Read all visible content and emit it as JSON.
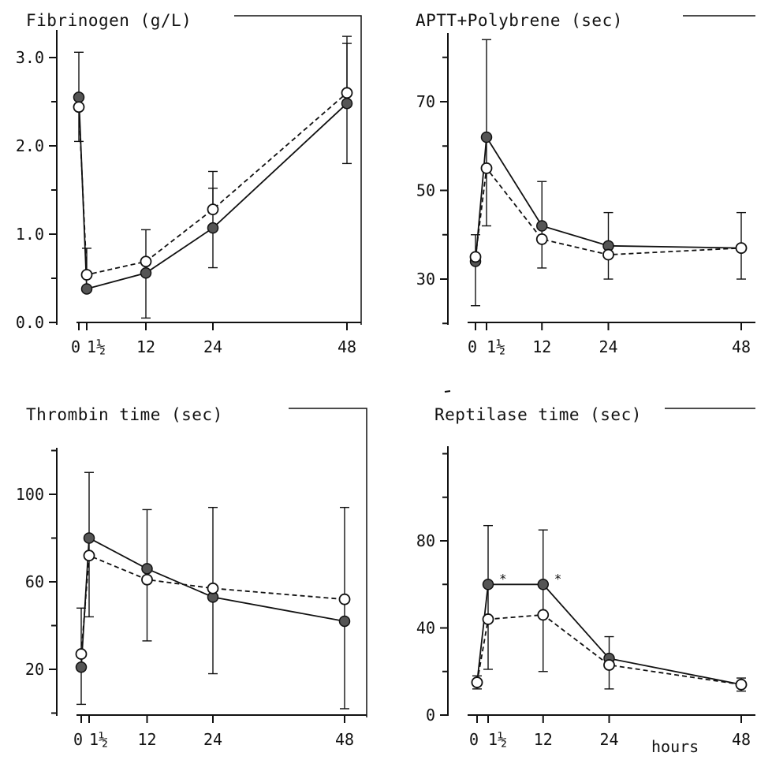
{
  "chart_data": [
    {
      "type": "line",
      "title": "Fibrinogen (g/L)",
      "x": [
        0,
        1.5,
        12,
        24,
        48
      ],
      "xticks": [
        "0",
        "1½",
        "12",
        "24",
        "48"
      ],
      "yticks": [
        "0.0",
        "1.0",
        "2.0",
        "3.0"
      ],
      "ylim": [
        0,
        3.2
      ],
      "series": [
        {
          "style": "solid",
          "marker": "filled",
          "values": [
            2.55,
            0.38,
            0.56,
            1.07,
            2.48
          ],
          "err_low": [
            2.05,
            0.38,
            0.05,
            0.62,
            1.8
          ],
          "err_high": [
            3.06,
            0.38,
            1.05,
            1.52,
            3.16
          ]
        },
        {
          "style": "dashed",
          "marker": "open",
          "values": [
            2.44,
            0.54,
            0.69,
            1.28,
            2.6
          ],
          "err_low": [
            2.44,
            0.54,
            0.69,
            1.28,
            2.6
          ],
          "err_high": [
            2.44,
            0.84,
            0.69,
            1.71,
            3.24
          ]
        }
      ]
    },
    {
      "type": "line",
      "title": "APTT+Polybrene (sec)",
      "x": [
        0,
        1.5,
        12,
        24,
        48
      ],
      "xticks": [
        "0",
        "1½",
        "12",
        "24",
        "48"
      ],
      "yticks": [
        "30",
        "50",
        "70"
      ],
      "ylim": [
        20,
        84
      ],
      "series": [
        {
          "style": "solid",
          "marker": "filled",
          "values": [
            34,
            62,
            42,
            37.5,
            37
          ],
          "err_low": [
            24,
            42,
            32.5,
            30,
            30
          ],
          "err_high": [
            40,
            84,
            52,
            45,
            45
          ]
        },
        {
          "style": "dashed",
          "marker": "open",
          "values": [
            35,
            55,
            39,
            35.5,
            37
          ],
          "err_low": [
            35,
            55,
            39,
            35.5,
            37
          ],
          "err_high": [
            35,
            55,
            39,
            35.5,
            37
          ]
        }
      ]
    },
    {
      "type": "line",
      "title": "Thrombin time (sec)",
      "x": [
        0,
        1.5,
        12,
        24,
        48
      ],
      "xticks": [
        "0",
        "1½",
        "12",
        "24",
        "48"
      ],
      "yticks": [
        "20",
        "60",
        "100"
      ],
      "ylim": [
        0,
        124
      ],
      "series": [
        {
          "style": "solid",
          "marker": "filled",
          "values": [
            21,
            80,
            66,
            53,
            42
          ],
          "err_low": [
            4,
            44,
            33,
            18,
            2
          ],
          "err_high": [
            48,
            110,
            93,
            94,
            94
          ]
        },
        {
          "style": "dashed",
          "marker": "open",
          "values": [
            27,
            72,
            61,
            57,
            52
          ],
          "err_low": [
            27,
            72,
            61,
            57,
            52
          ],
          "err_high": [
            27,
            72,
            61,
            57,
            52
          ]
        }
      ]
    },
    {
      "type": "line",
      "title": "Reptilase time (sec)",
      "x": [
        0,
        1.5,
        12,
        24,
        48
      ],
      "xticks": [
        "0",
        "1½",
        "12",
        "24",
        "48"
      ],
      "yticks": [
        "0",
        "40",
        "80"
      ],
      "ylim": [
        0,
        124
      ],
      "xlabel": "hours",
      "annotations": [
        "*",
        "*"
      ],
      "series": [
        {
          "style": "solid",
          "marker": "filled",
          "values": [
            15,
            60,
            60,
            26,
            14
          ],
          "err_low": [
            12,
            21,
            20,
            12,
            11
          ],
          "err_high": [
            18,
            87,
            85,
            36,
            17
          ]
        },
        {
          "style": "dashed",
          "marker": "open",
          "values": [
            15,
            44,
            46,
            23,
            14
          ],
          "err_low": [
            15,
            44,
            46,
            23,
            14
          ],
          "err_high": [
            15,
            44,
            46,
            23,
            14
          ]
        }
      ]
    }
  ]
}
